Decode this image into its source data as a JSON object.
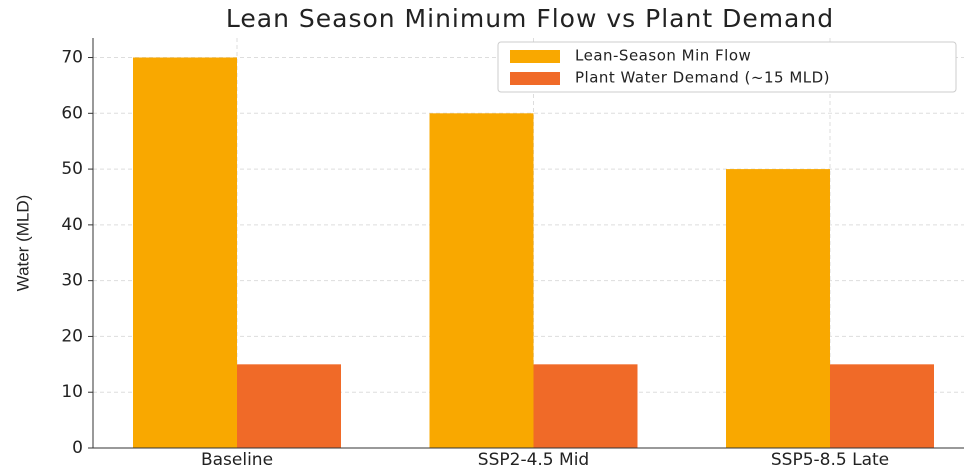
{
  "chart_data": {
    "type": "bar",
    "title": "Lean Season Minimum Flow vs Plant Demand",
    "y_label": "Water (MLD)",
    "categories": [
      "Baseline",
      "SSP2-4.5 Mid",
      "SSP5-8.5 Late"
    ],
    "series": [
      {
        "name": "Lean-Season Min Flow",
        "color": "#f9a800",
        "values": [
          70,
          60,
          50
        ]
      },
      {
        "name": "Plant Water Demand (~15 MLD)",
        "color": "#f06a28",
        "values": [
          15,
          15,
          15
        ]
      }
    ],
    "ylim": [
      0,
      73.5
    ],
    "yticks": [
      0,
      10,
      20,
      30,
      40,
      50,
      60,
      70
    ],
    "grid": true,
    "legend": "upper right"
  }
}
